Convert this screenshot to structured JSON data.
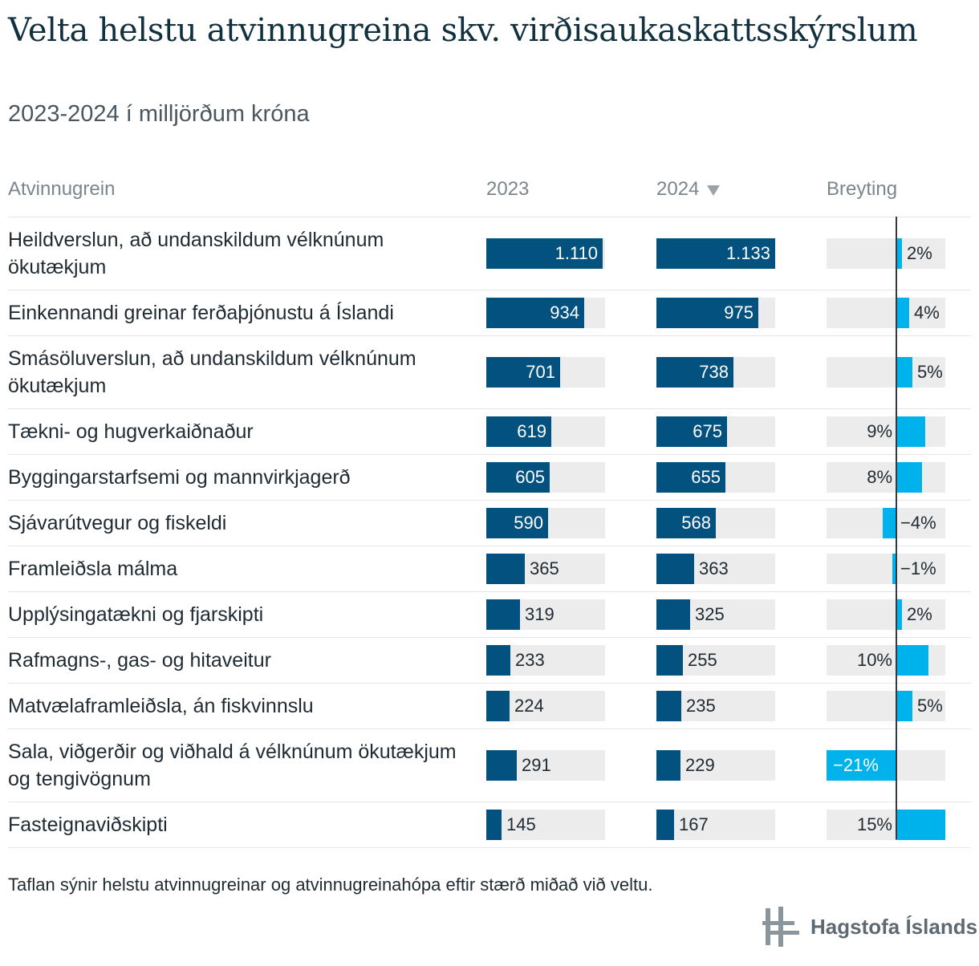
{
  "title": "Velta helstu atvinnugreina skv. virðisaukaskattsskýrslum",
  "subtitle": "2023-2024 í milljörðum króna",
  "headers": {
    "category": "Atvinnugrein",
    "y2023": "2023",
    "y2024": "2024",
    "change": "Breyting"
  },
  "note": "Taflan sýnir helstu atvinnugreinar og atvinnugreinahópa eftir stærð miðað við veltu.",
  "logo_text": "Hagstofa Íslands",
  "icons": {
    "sort": "sort-descending-icon",
    "logo": "hagstofa-logo-icon"
  },
  "colors": {
    "bar": "#02517f",
    "change_bar": "#00b2ec",
    "track": "#ececec"
  },
  "chart_data": {
    "type": "table",
    "value_max": 1133,
    "change_range": [
      -21,
      15
    ],
    "rows": [
      {
        "category": "Heildverslun, að undanskildum vélknúnum ökutækjum",
        "v2023": 1110,
        "v2024": 1133,
        "l2023": "1.110",
        "l2024": "1.133",
        "change": 2,
        "change_label": "2%"
      },
      {
        "category": "Einkennandi greinar ferðaþjónustu á Íslandi",
        "v2023": 934,
        "v2024": 975,
        "l2023": "934",
        "l2024": "975",
        "change": 4,
        "change_label": "4%"
      },
      {
        "category": "Smásöluverslun, að undanskildum vélknúnum ökutækjum",
        "v2023": 701,
        "v2024": 738,
        "l2023": "701",
        "l2024": "738",
        "change": 5,
        "change_label": "5%"
      },
      {
        "category": "Tækni- og hugverkaiðnaður",
        "v2023": 619,
        "v2024": 675,
        "l2023": "619",
        "l2024": "675",
        "change": 9,
        "change_label": "9%"
      },
      {
        "category": "Byggingarstarfsemi og mannvirkjagerð",
        "v2023": 605,
        "v2024": 655,
        "l2023": "605",
        "l2024": "655",
        "change": 8,
        "change_label": "8%"
      },
      {
        "category": "Sjávarútvegur og fiskeldi",
        "v2023": 590,
        "v2024": 568,
        "l2023": "590",
        "l2024": "568",
        "change": -4,
        "change_label": "−4%"
      },
      {
        "category": "Framleiðsla málma",
        "v2023": 365,
        "v2024": 363,
        "l2023": "365",
        "l2024": "363",
        "change": -1,
        "change_label": "−1%"
      },
      {
        "category": "Upplýsingatækni og fjarskipti",
        "v2023": 319,
        "v2024": 325,
        "l2023": "319",
        "l2024": "325",
        "change": 2,
        "change_label": "2%"
      },
      {
        "category": "Rafmagns-, gas- og hitaveitur",
        "v2023": 233,
        "v2024": 255,
        "l2023": "233",
        "l2024": "255",
        "change": 10,
        "change_label": "10%"
      },
      {
        "category": "Matvælaframleiðsla, án fiskvinnslu",
        "v2023": 224,
        "v2024": 235,
        "l2023": "224",
        "l2024": "235",
        "change": 5,
        "change_label": "5%"
      },
      {
        "category": "Sala, viðgerðir og viðhald á vélknúnum ökutækjum og tengivögnum",
        "v2023": 291,
        "v2024": 229,
        "l2023": "291",
        "l2024": "229",
        "change": -21,
        "change_label": "−21%"
      },
      {
        "category": "Fasteignaviðskipti",
        "v2023": 145,
        "v2024": 167,
        "l2023": "145",
        "l2024": "167",
        "change": 15,
        "change_label": "15%"
      }
    ]
  }
}
